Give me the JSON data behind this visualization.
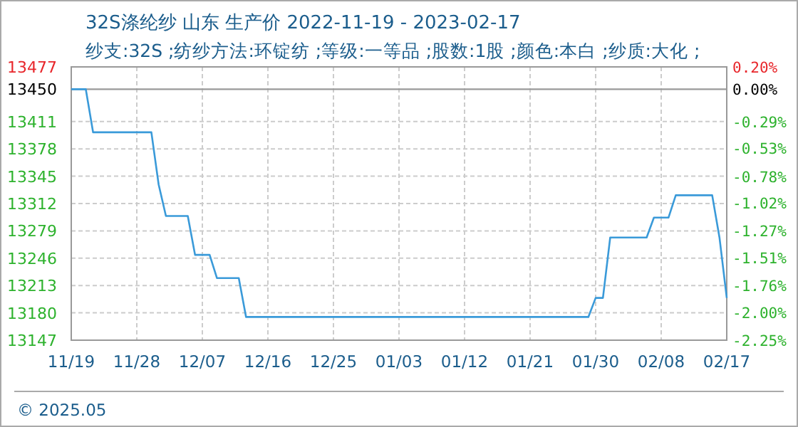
{
  "chart_data": {
    "type": "line",
    "title": "32S涤纶纱 山东 生产价 2022-11-19 - 2023-02-17",
    "subtitle": "纱支:32S ;纺纱方法:环锭纺 ;等级:一等品 ;股数:1股 ;颜色:本白 ;纱质:大化 ;",
    "x": [
      "2022-11-19",
      "2022-11-21",
      "2022-11-22",
      "2022-11-30",
      "2022-12-01",
      "2022-12-02",
      "2022-12-05",
      "2022-12-06",
      "2022-12-08",
      "2022-12-09",
      "2022-12-12",
      "2022-12-13",
      "2023-01-29",
      "2023-01-30",
      "2023-01-31",
      "2023-02-01",
      "2023-02-06",
      "2023-02-07",
      "2023-02-09",
      "2023-02-10",
      "2023-02-15",
      "2023-02-16",
      "2023-02-17"
    ],
    "series": [
      {
        "color": "#3a9ad9",
        "values": [
          13450,
          13450,
          13398,
          13398,
          13335,
          13297,
          13297,
          13250,
          13250,
          13222,
          13222,
          13175,
          13175,
          13198,
          13198,
          13271,
          13271,
          13295,
          13295,
          13322,
          13322,
          13271,
          13198
        ]
      }
    ],
    "xlim": [
      "2022-11-19",
      "2023-02-17"
    ],
    "xticks": [
      {
        "value": "2022-11-19",
        "label": "11/19"
      },
      {
        "value": "2022-11-28",
        "label": "11/28"
      },
      {
        "value": "2022-12-07",
        "label": "12/07"
      },
      {
        "value": "2022-12-16",
        "label": "12/16"
      },
      {
        "value": "2022-12-25",
        "label": "12/25"
      },
      {
        "value": "2023-01-03",
        "label": "01/03"
      },
      {
        "value": "2023-01-12",
        "label": "01/12"
      },
      {
        "value": "2023-01-21",
        "label": "01/21"
      },
      {
        "value": "2023-01-30",
        "label": "01/30"
      },
      {
        "value": "2023-02-08",
        "label": "02/08"
      },
      {
        "value": "2023-02-17",
        "label": "02/17"
      }
    ],
    "ylim": [
      13147,
      13477
    ],
    "yticks": [
      13147,
      13180,
      13213,
      13246,
      13279,
      13312,
      13345,
      13378,
      13411,
      13450,
      13477
    ],
    "y2lim": [
      -2.25,
      0.2
    ],
    "y2ticks": [
      {
        "value": 0.2,
        "label": "0.20%"
      },
      {
        "value": 0,
        "label": "0.00%"
      },
      {
        "value": -0.29,
        "label": "-0.29%"
      },
      {
        "value": -0.53,
        "label": "-0.53%"
      },
      {
        "value": -0.78,
        "label": "-0.78%"
      },
      {
        "value": -1.02,
        "label": "-1.02%"
      },
      {
        "value": -1.27,
        "label": "-1.27%"
      },
      {
        "value": -1.51,
        "label": "-1.51%"
      },
      {
        "value": -1.76,
        "label": "-1.76%"
      },
      {
        "value": -2.0,
        "label": "-2.00%"
      },
      {
        "value": -2.25,
        "label": "-2.25%"
      }
    ],
    "ref_lines": [
      {
        "axis": "y",
        "value": 13450
      }
    ],
    "grid": true,
    "marker": "none",
    "line_style": "solid",
    "annotations": [
      "© 2025.05"
    ]
  }
}
